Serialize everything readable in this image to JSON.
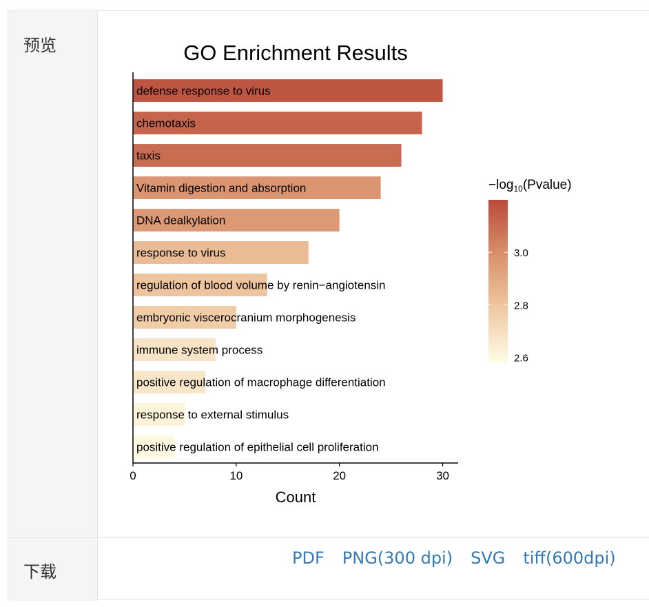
{
  "rows": {
    "preview_label": "预览",
    "download_label": "下载"
  },
  "downloads": [
    "PDF",
    "PNG(300 dpi)",
    "SVG",
    "tiff(600dpi)"
  ],
  "chart_data": {
    "type": "bar",
    "orientation": "horizontal",
    "title": "GO Enrichment Results",
    "xlabel": "Count",
    "ylabel": "",
    "xlim": [
      0,
      31.5
    ],
    "xticks": [
      0,
      10,
      20,
      30
    ],
    "grid": false,
    "categories": [
      "defense response to virus",
      "chemotaxis",
      "taxis",
      "Vitamin digestion and absorption",
      "DNA dealkylation",
      "response to virus",
      "regulation of blood volume by renin−angiotensin",
      "embryonic viscerocranium morphogenesis",
      "immune system process",
      "positive regulation of macrophage differentiation",
      "response to external stimulus",
      "positive regulation of epithelial cell proliferation"
    ],
    "values": [
      30,
      28,
      26,
      24,
      20,
      17,
      13,
      10,
      8,
      7,
      5,
      4
    ],
    "color_values": [
      3.17,
      3.12,
      3.1,
      2.97,
      2.96,
      2.83,
      2.8,
      2.77,
      2.68,
      2.67,
      2.62,
      2.6
    ],
    "legend": {
      "title_prefix": "−log",
      "title_sub": "10",
      "title_suffix": "(Pvalue)",
      "placement": "right",
      "range": [
        2.58,
        3.2
      ],
      "ticks": [
        "3.0",
        "2.8",
        "2.6"
      ],
      "tick_values": [
        3.0,
        2.8,
        2.6
      ],
      "colors": [
        "#b94a3b",
        "#d9906b",
        "#efc8a2",
        "#fffde6"
      ]
    }
  }
}
